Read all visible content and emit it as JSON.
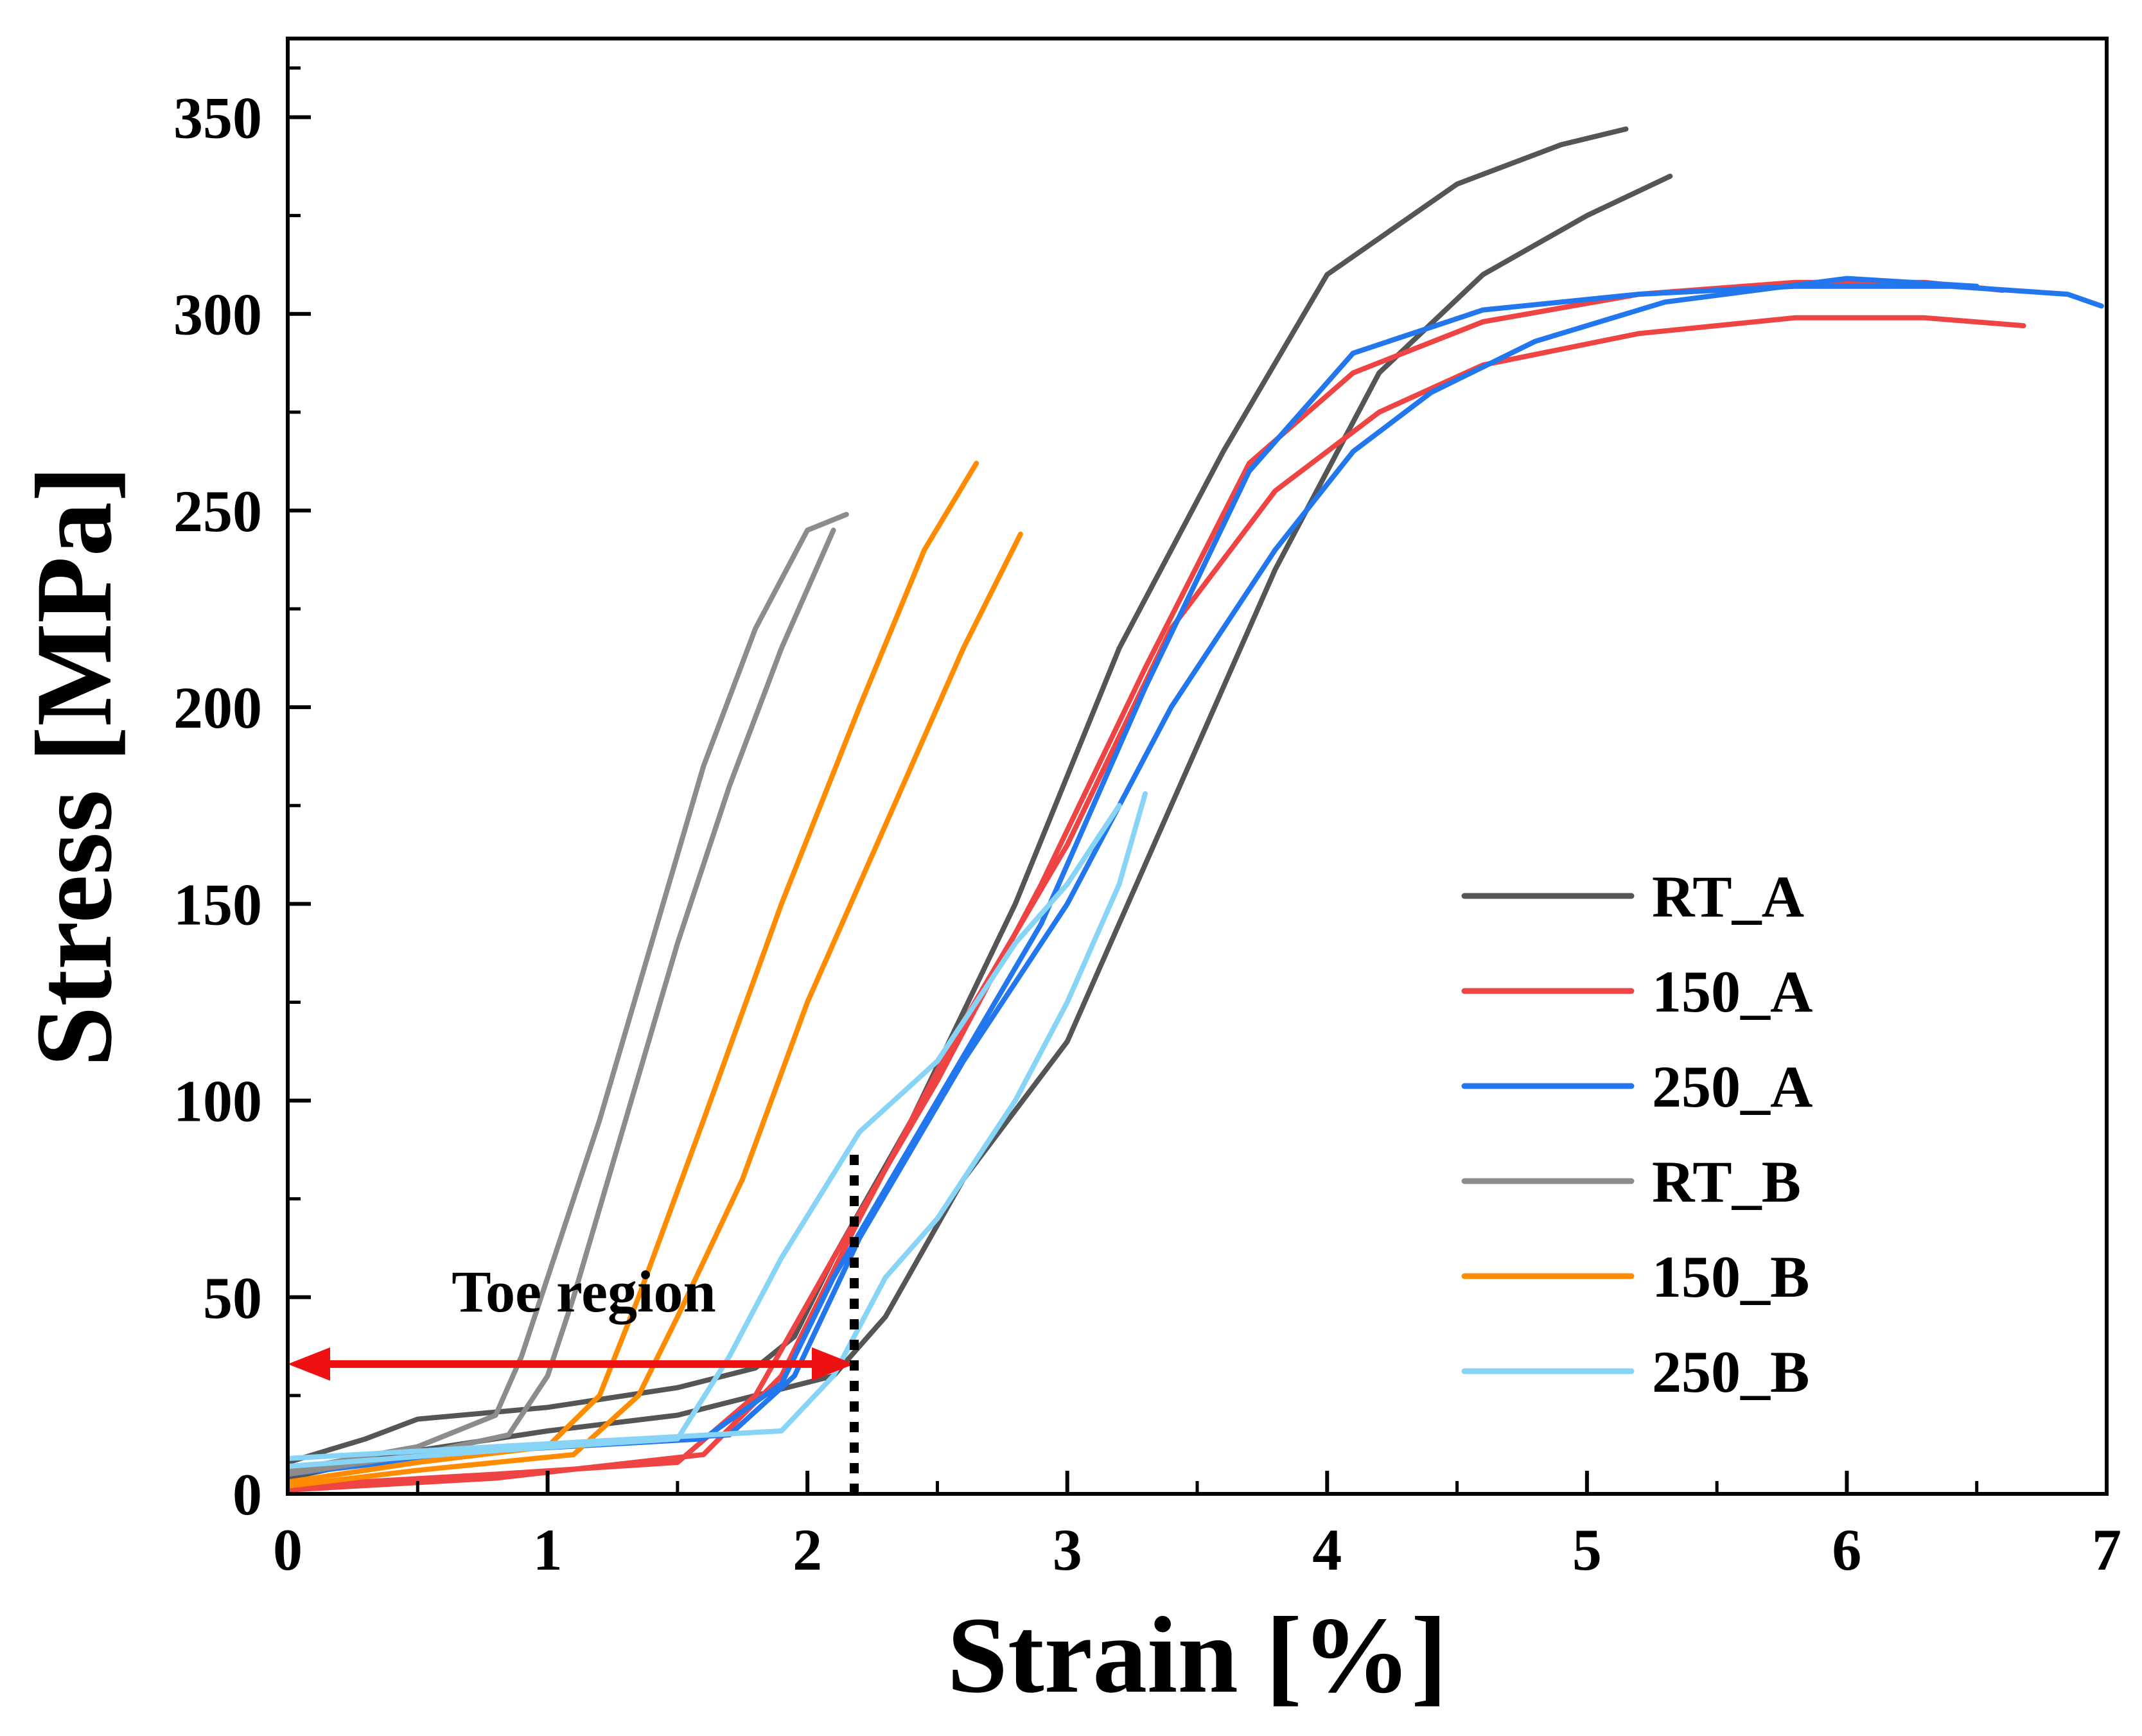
{
  "chart_data": {
    "type": "line",
    "title": "",
    "xlabel": "Strain [%]",
    "ylabel": "Stress [MPa]",
    "xlim": [
      0,
      7
    ],
    "ylim": [
      0,
      370
    ],
    "xticks": [
      0,
      1,
      2,
      3,
      4,
      5,
      6,
      7
    ],
    "yticks": [
      0,
      50,
      100,
      150,
      200,
      250,
      300,
      350
    ],
    "legend_position": "right-middle",
    "series": [
      {
        "name": "RT_A",
        "color": "#555555",
        "curves": [
          [
            [
              0,
              8
            ],
            [
              0.3,
              14
            ],
            [
              0.5,
              19
            ],
            [
              1.0,
              22
            ],
            [
              1.5,
              27
            ],
            [
              1.8,
              32
            ],
            [
              1.95,
              40
            ],
            [
              2.1,
              60
            ],
            [
              2.4,
              95
            ],
            [
              2.8,
              150
            ],
            [
              3.2,
              215
            ],
            [
              3.6,
              265
            ],
            [
              4.0,
              310
            ],
            [
              4.5,
              333
            ],
            [
              4.9,
              343
            ],
            [
              5.15,
              347
            ]
          ],
          [
            [
              0,
              4
            ],
            [
              0.5,
              11
            ],
            [
              1.0,
              16
            ],
            [
              1.5,
              20
            ],
            [
              1.8,
              25
            ],
            [
              2.1,
              30
            ],
            [
              2.3,
              45
            ],
            [
              2.6,
              80
            ],
            [
              3.0,
              115
            ],
            [
              3.4,
              175
            ],
            [
              3.8,
              235
            ],
            [
              4.2,
              285
            ],
            [
              4.6,
              310
            ],
            [
              5.0,
              325
            ],
            [
              5.32,
              335
            ]
          ]
        ]
      },
      {
        "name": "150_A",
        "color": "#EE4444",
        "curves": [
          [
            [
              0,
              2
            ],
            [
              0.8,
              5
            ],
            [
              1.5,
              8
            ],
            [
              1.8,
              25
            ],
            [
              2.1,
              60
            ],
            [
              2.5,
              105
            ],
            [
              2.9,
              155
            ],
            [
              3.3,
              210
            ],
            [
              3.7,
              262
            ],
            [
              4.1,
              285
            ],
            [
              4.6,
              298
            ],
            [
              5.2,
              305
            ],
            [
              5.8,
              308
            ],
            [
              6.3,
              308
            ],
            [
              6.6,
              306
            ]
          ],
          [
            [
              0,
              1
            ],
            [
              0.8,
              4
            ],
            [
              1.6,
              10
            ],
            [
              1.9,
              30
            ],
            [
              2.2,
              70
            ],
            [
              2.6,
              120
            ],
            [
              3.0,
              165
            ],
            [
              3.4,
              220
            ],
            [
              3.8,
              255
            ],
            [
              4.2,
              275
            ],
            [
              4.6,
              287
            ],
            [
              5.2,
              295
            ],
            [
              5.8,
              299
            ],
            [
              6.3,
              299
            ],
            [
              6.68,
              297
            ]
          ]
        ]
      },
      {
        "name": "250_A",
        "color": "#2277EE",
        "curves": [
          [
            [
              0,
              6
            ],
            [
              0.8,
              11
            ],
            [
              1.6,
              14
            ],
            [
              1.9,
              28
            ],
            [
              2.1,
              55
            ],
            [
              2.5,
              100
            ],
            [
              2.9,
              145
            ],
            [
              3.3,
              205
            ],
            [
              3.7,
              260
            ],
            [
              4.1,
              290
            ],
            [
              4.6,
              301
            ],
            [
              5.2,
              305
            ],
            [
              5.8,
              307
            ],
            [
              6.4,
              307
            ],
            [
              6.85,
              305
            ],
            [
              6.98,
              302
            ]
          ],
          [
            [
              0,
              5
            ],
            [
              0.9,
              12
            ],
            [
              1.7,
              15
            ],
            [
              1.95,
              30
            ],
            [
              2.2,
              65
            ],
            [
              2.6,
              110
            ],
            [
              3.0,
              150
            ],
            [
              3.4,
              200
            ],
            [
              3.8,
              240
            ],
            [
              4.1,
              265
            ],
            [
              4.4,
              280
            ],
            [
              4.8,
              293
            ],
            [
              5.3,
              303
            ],
            [
              6.0,
              309
            ],
            [
              6.5,
              307
            ]
          ]
        ]
      },
      {
        "name": "RT_B",
        "color": "#8C8C8C",
        "curves": [
          [
            [
              0,
              6
            ],
            [
              0.5,
              12
            ],
            [
              0.8,
              20
            ],
            [
              0.9,
              35
            ],
            [
              1.0,
              55
            ],
            [
              1.2,
              95
            ],
            [
              1.4,
              140
            ],
            [
              1.6,
              185
            ],
            [
              1.8,
              220
            ],
            [
              2.0,
              245
            ],
            [
              2.15,
              249
            ]
          ],
          [
            [
              0,
              5
            ],
            [
              0.5,
              10
            ],
            [
              0.85,
              15
            ],
            [
              1.0,
              30
            ],
            [
              1.1,
              50
            ],
            [
              1.3,
              95
            ],
            [
              1.5,
              140
            ],
            [
              1.7,
              180
            ],
            [
              1.9,
              215
            ],
            [
              2.1,
              245
            ]
          ]
        ]
      },
      {
        "name": "150_B",
        "color": "#FF8C00",
        "curves": [
          [
            [
              0,
              3
            ],
            [
              0.5,
              8
            ],
            [
              1.0,
              12
            ],
            [
              1.2,
              25
            ],
            [
              1.35,
              50
            ],
            [
              1.6,
              95
            ],
            [
              1.9,
              150
            ],
            [
              2.2,
              200
            ],
            [
              2.45,
              240
            ],
            [
              2.65,
              262
            ]
          ],
          [
            [
              0,
              2
            ],
            [
              0.5,
              6
            ],
            [
              1.1,
              10
            ],
            [
              1.35,
              25
            ],
            [
              1.5,
              45
            ],
            [
              1.75,
              80
            ],
            [
              2.0,
              125
            ],
            [
              2.3,
              170
            ],
            [
              2.6,
              215
            ],
            [
              2.82,
              244
            ]
          ]
        ]
      },
      {
        "name": "250_B",
        "color": "#88D4F7",
        "curves": [
          [
            [
              0,
              7
            ],
            [
              0.8,
              11
            ],
            [
              1.5,
              14
            ],
            [
              1.7,
              35
            ],
            [
              1.9,
              60
            ],
            [
              2.2,
              92
            ],
            [
              2.5,
              110
            ],
            [
              2.8,
              140
            ],
            [
              3.0,
              155
            ],
            [
              3.2,
              175
            ]
          ],
          [
            [
              0,
              9
            ],
            [
              0.8,
              12
            ],
            [
              1.9,
              16
            ],
            [
              2.1,
              30
            ],
            [
              2.3,
              55
            ],
            [
              2.5,
              70
            ],
            [
              2.8,
              100
            ],
            [
              3.0,
              125
            ],
            [
              3.2,
              155
            ],
            [
              3.3,
              178
            ]
          ]
        ]
      }
    ],
    "annotations": [
      {
        "type": "double-arrow",
        "text": "Toe region",
        "x_start": 0,
        "x_end": 2.18,
        "y": 33,
        "color": "#EE1111"
      },
      {
        "type": "dotted-vline",
        "x": 2.18,
        "y_start": 0,
        "y_end": 87,
        "color": "#000000"
      }
    ]
  }
}
